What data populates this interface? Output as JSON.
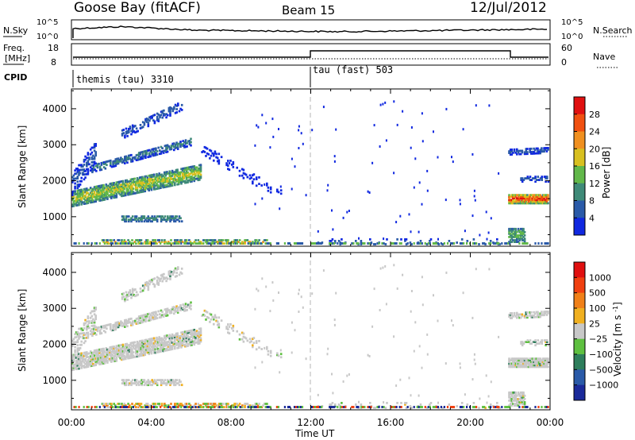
{
  "header": {
    "station": "Goose Bay (fitACF)",
    "beam": "Beam 15",
    "date": "12/Jul/2012"
  },
  "noise_panel": {
    "left_label": "N.Sky",
    "right_label": "N.Search",
    "left_ticks": [
      "10^5",
      "10^0"
    ],
    "right_ticks": [
      "10^5",
      "10^0"
    ]
  },
  "freq_panel": {
    "left_label_1": "Freq.",
    "left_label_2": "[MHz]",
    "right_label": "Nave",
    "left_ticks": [
      "18",
      "8"
    ],
    "right_ticks": [
      "60",
      "0"
    ]
  },
  "cpid_panel": {
    "label": "CPID",
    "modes": [
      {
        "name": "themis (tau) 3310",
        "start_hour": 0
      },
      {
        "name": "tau (fast) 503",
        "start_hour": 12
      }
    ]
  },
  "x_axis": {
    "label": "Time UT",
    "tick_labels": [
      "00:00",
      "04:00",
      "08:00",
      "12:00",
      "16:00",
      "20:00",
      "00:00"
    ],
    "range_hours": [
      0,
      24
    ]
  },
  "chart_data": [
    {
      "type": "heatmap",
      "title": "",
      "xlabel": "Time UT",
      "ylabel": "Slant Range [km]",
      "xlim_hours": [
        0,
        24
      ],
      "ylim_km": [
        180,
        4550
      ],
      "y_ticks": [
        "1000",
        "2000",
        "3000",
        "4000"
      ],
      "y_tick_values": [
        1000,
        2000,
        3000,
        4000
      ],
      "colorbar": {
        "label": "Power [dB]",
        "ticks": [
          "4",
          "8",
          "12",
          "16",
          "20",
          "24",
          "28"
        ],
        "colors": [
          "#1028e0",
          "#2a5aa8",
          "#3f8a78",
          "#62b84a",
          "#d8c020",
          "#f09020",
          "#f05010",
          "#e01010"
        ]
      }
    },
    {
      "type": "heatmap",
      "title": "",
      "xlabel": "Time UT",
      "ylabel": "Slant Range [km]",
      "xlim_hours": [
        0,
        24
      ],
      "ylim_km": [
        180,
        4550
      ],
      "y_ticks": [
        "1000",
        "2000",
        "3000",
        "4000"
      ],
      "y_tick_values": [
        1000,
        2000,
        3000,
        4000
      ],
      "colorbar": {
        "label": "Velocity [m s^-1]",
        "ticks": [
          "1000",
          "500",
          "100",
          "25",
          "−25",
          "−100",
          "−500",
          "−1000"
        ],
        "colors": [
          "#1a2a9a",
          "#2a5aa8",
          "#2e7e5c",
          "#5ec040",
          "#c8c8c8",
          "#f0b020",
          "#f08018",
          "#f04010",
          "#e01010"
        ]
      }
    }
  ]
}
